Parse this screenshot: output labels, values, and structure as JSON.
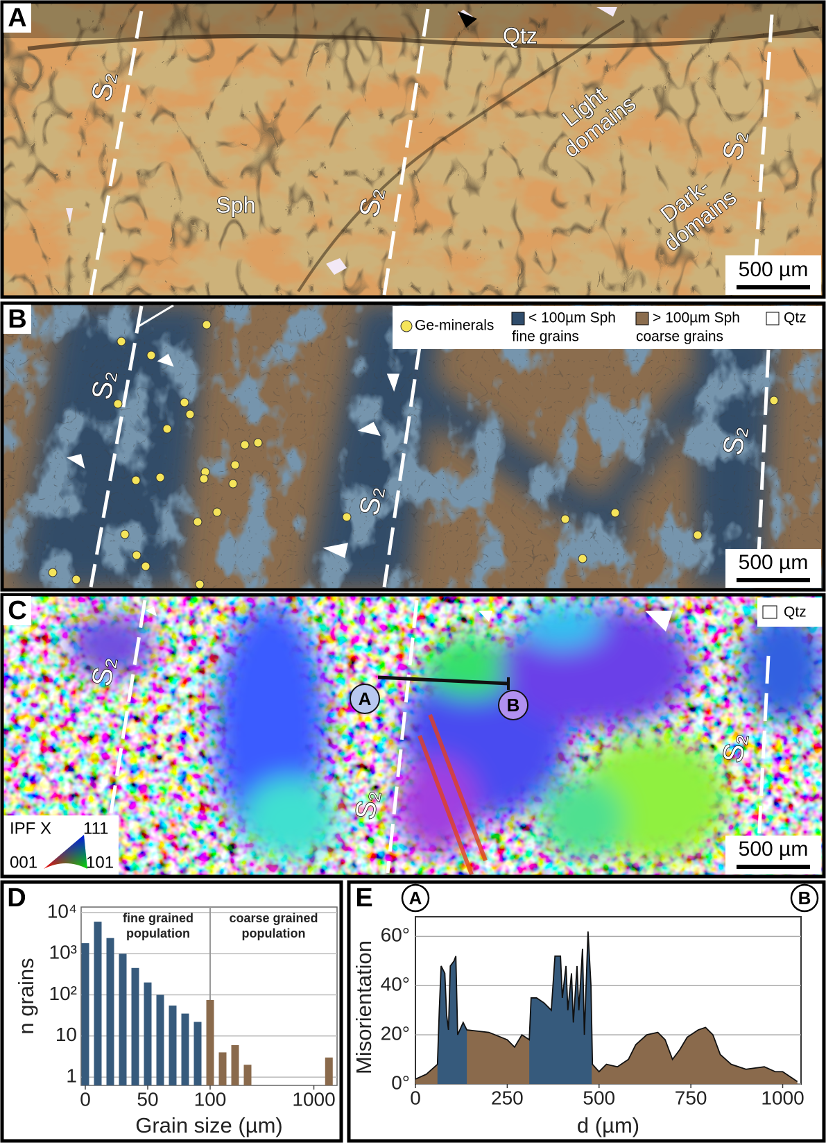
{
  "panels": {
    "a": {
      "label": "A",
      "qtz": "Qtz",
      "sph": "Sph",
      "light_domains": [
        "Light",
        "domains"
      ],
      "dark_domains": [
        "Dark-",
        "domains"
      ],
      "foliation": "S₂",
      "scale_bar": "500 µm"
    },
    "b": {
      "label": "B",
      "legend": {
        "ge": "Ge-minerals",
        "fine": [
          "< 100µm Sph",
          "fine grains"
        ],
        "coarse": [
          "> 100µm Sph",
          "coarse grains"
        ],
        "qtz": "Qtz"
      },
      "foliation": "S₂",
      "scale_bar": "500 µm"
    },
    "c": {
      "label": "C",
      "legend_qtz": "Qtz",
      "profile_start": "A",
      "profile_end": "B",
      "foliation": "S₂",
      "scale_bar": "500 µm",
      "ipf": {
        "title": "IPF X",
        "corners": [
          "111",
          "001",
          "101"
        ]
      }
    }
  },
  "chart_data": [
    {
      "type": "bar",
      "label": "D",
      "xlabel": "Grain size (µm)",
      "ylabel": "n grains",
      "series": [
        {
          "color": "#365a7c",
          "x": [
            0,
            10,
            20,
            30,
            40,
            50,
            60,
            70,
            80,
            90
          ],
          "values": [
            1800,
            6000,
            2400,
            1000,
            450,
            200,
            100,
            55,
            35,
            22
          ]
        },
        {
          "color": "#8a6a4c",
          "x": [
            100,
            110,
            120,
            130,
            2000
          ],
          "values": [
            75,
            4,
            6,
            2,
            3
          ]
        }
      ],
      "xlim": [
        0,
        2400
      ],
      "xscale": "broken",
      "xticks": [
        0,
        50,
        100,
        1000
      ],
      "ylim": [
        0.63,
        13600
      ],
      "yscale": "log",
      "yticks": [
        1,
        10,
        {
          "value": 100,
          "label": "10²"
        },
        {
          "value": 1000,
          "label": "10³"
        },
        {
          "value": 10000,
          "label": "10⁴"
        }
      ],
      "grid": true,
      "divider": 100,
      "annotations": [
        [
          "fine grained",
          "population"
        ],
        [
          "coarse grained",
          "population"
        ]
      ]
    },
    {
      "type": "area",
      "label": "E",
      "start_marker": "A",
      "end_marker": "B",
      "xlabel": "d (µm)",
      "ylabel": "Misorientation",
      "x": [
        0,
        30,
        60,
        65,
        70,
        80,
        85,
        90,
        95,
        105,
        110,
        115,
        130,
        140,
        200,
        250,
        270,
        290,
        310,
        315,
        330,
        350,
        370,
        380,
        395,
        400,
        410,
        415,
        425,
        430,
        440,
        445,
        455,
        460,
        470,
        478,
        482,
        500,
        520,
        550,
        580,
        600,
        630,
        660,
        680,
        700,
        720,
        740,
        770,
        790,
        810,
        830,
        860,
        900,
        950,
        980,
        1000,
        1020,
        1040
      ],
      "values": [
        2,
        4,
        8,
        30,
        48,
        45,
        28,
        22,
        48,
        50,
        52,
        20,
        25,
        22,
        21,
        18,
        15,
        20,
        18,
        35,
        35,
        33,
        30,
        52,
        52,
        35,
        48,
        30,
        45,
        25,
        48,
        30,
        55,
        20,
        62,
        40,
        8,
        5,
        8,
        7,
        10,
        16,
        20,
        21,
        18,
        10,
        14,
        19,
        22,
        23,
        20,
        12,
        8,
        6,
        7,
        5,
        5,
        3,
        1
      ],
      "color": "#8a6a4c",
      "highlight_color": "#365a7c",
      "highlight_ranges": [
        [
          60,
          140
        ],
        [
          310,
          480
        ]
      ],
      "xlim": [
        0,
        1050
      ],
      "xticks": [
        0,
        250,
        500,
        750,
        1000
      ],
      "ylim": [
        0,
        68
      ],
      "yticks": [
        {
          "value": 0,
          "label": "0°"
        },
        {
          "value": 20,
          "label": "20°"
        },
        {
          "value": 40,
          "label": "40°"
        },
        {
          "value": 60,
          "label": "60°"
        }
      ],
      "grid": true
    }
  ]
}
